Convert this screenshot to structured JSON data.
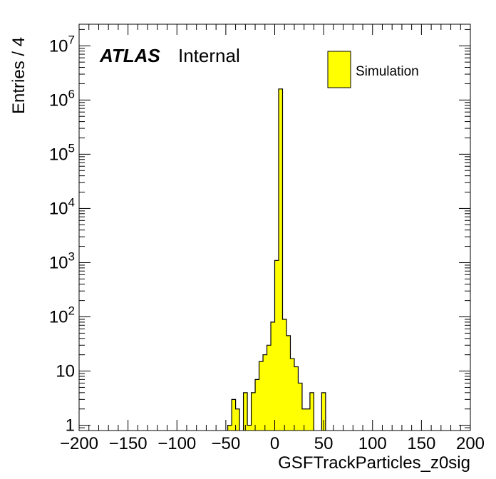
{
  "chart_data": {
    "type": "bar",
    "title": "",
    "xlabel": "GSFTrackParticles_z0sig",
    "ylabel": "Entries / 4",
    "xlim": [
      -200,
      200
    ],
    "ylim": [
      0.8,
      25000000
    ],
    "yscale": "log",
    "bin_width": 4,
    "grid": false,
    "legend_position": "top-right",
    "label_experiment": "ATLAS",
    "label_status": "Internal",
    "x_tick_labels": [
      "−200",
      "−150",
      "−100",
      "−50",
      "0",
      "50",
      "100",
      "150",
      "200"
    ],
    "x_ticks": [
      -200,
      -150,
      -100,
      -50,
      0,
      50,
      100,
      150,
      200
    ],
    "y_tick_labels": [
      {
        "value": 1,
        "base": "1",
        "exp": ""
      },
      {
        "value": 10,
        "base": "10",
        "exp": ""
      },
      {
        "value": 100,
        "base": "10",
        "exp": "2"
      },
      {
        "value": 1000,
        "base": "10",
        "exp": "3"
      },
      {
        "value": 10000,
        "base": "10",
        "exp": "4"
      },
      {
        "value": 100000,
        "base": "10",
        "exp": "5"
      },
      {
        "value": 1000000,
        "base": "10",
        "exp": "6"
      },
      {
        "value": 10000000,
        "base": "10",
        "exp": "7"
      }
    ],
    "series": [
      {
        "name": "Simulation",
        "color": "#ffff00",
        "edge_color": "#000000",
        "bins": [
          {
            "x0": -48,
            "x1": -44,
            "y": 1
          },
          {
            "x0": -44,
            "x1": -40,
            "y": 3
          },
          {
            "x0": -40,
            "x1": -36,
            "y": 2
          },
          {
            "x0": -32,
            "x1": -28,
            "y": 4
          },
          {
            "x0": -28,
            "x1": -24,
            "y": 1
          },
          {
            "x0": -24,
            "x1": -20,
            "y": 4
          },
          {
            "x0": -20,
            "x1": -16,
            "y": 7
          },
          {
            "x0": -16,
            "x1": -12,
            "y": 15
          },
          {
            "x0": -12,
            "x1": -8,
            "y": 20
          },
          {
            "x0": -8,
            "x1": -4,
            "y": 30
          },
          {
            "x0": -4,
            "x1": 0,
            "y": 80
          },
          {
            "x0": 0,
            "x1": 4,
            "y": 1100
          },
          {
            "x0": 4,
            "x1": 8,
            "y": 1600000
          },
          {
            "x0": 8,
            "x1": 12,
            "y": 90
          },
          {
            "x0": 12,
            "x1": 16,
            "y": 45
          },
          {
            "x0": 16,
            "x1": 20,
            "y": 17
          },
          {
            "x0": 20,
            "x1": 24,
            "y": 12
          },
          {
            "x0": 24,
            "x1": 28,
            "y": 6
          },
          {
            "x0": 28,
            "x1": 32,
            "y": 2
          },
          {
            "x0": 32,
            "x1": 36,
            "y": 2
          },
          {
            "x0": 36,
            "x1": 40,
            "y": 4
          },
          {
            "x0": 48,
            "x1": 52,
            "y": 4
          }
        ]
      }
    ]
  }
}
